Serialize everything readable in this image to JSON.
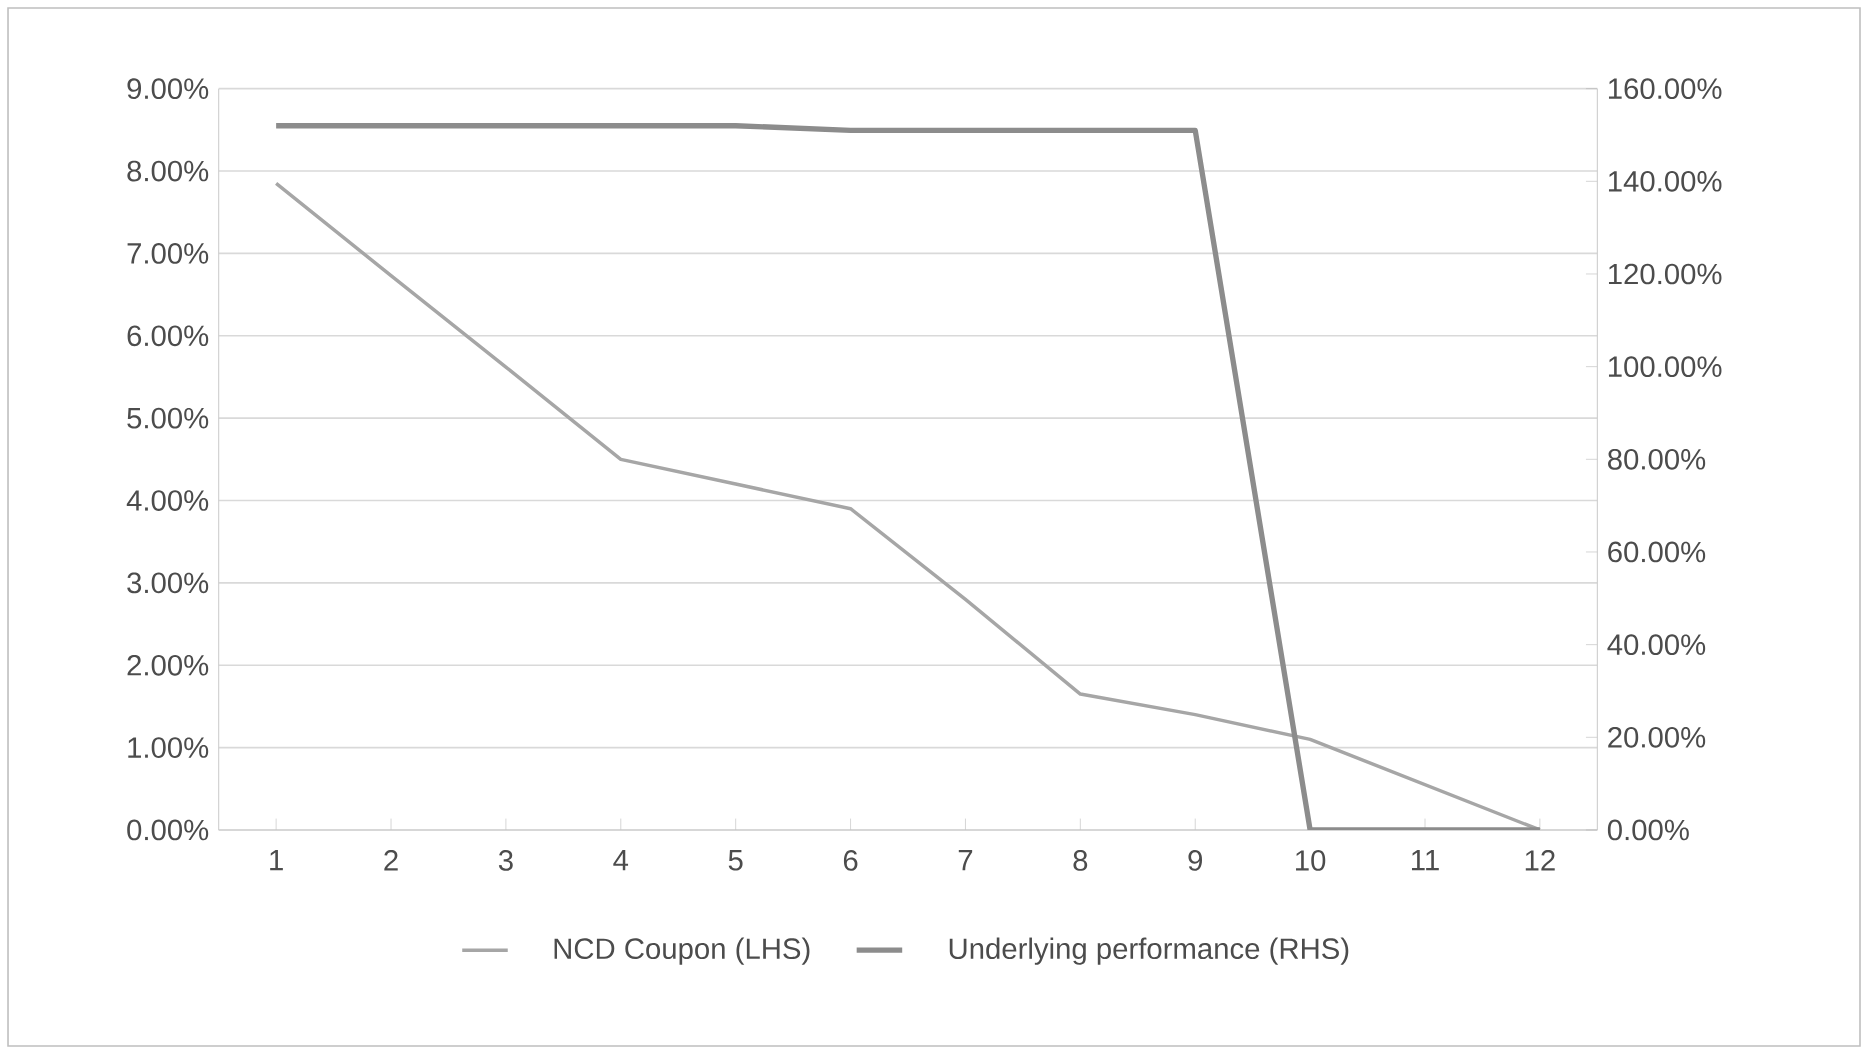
{
  "chart_data": {
    "type": "line",
    "categories": [
      "1",
      "2",
      "3",
      "4",
      "5",
      "6",
      "7",
      "8",
      "9",
      "10",
      "11",
      "12"
    ],
    "series": [
      {
        "name": "NCD Coupon (LHS)",
        "color": "#a6a6a6",
        "values": [
          7.85,
          6.73,
          5.62,
          4.5,
          4.2,
          3.9,
          2.8,
          1.65,
          1.4,
          1.1,
          0.55,
          0
        ]
      },
      {
        "name": "Underlying performance (RHS)",
        "color": "#8c8c8c",
        "axis": "y2",
        "values": [
          152,
          152,
          152,
          152,
          152,
          151,
          151,
          151,
          151,
          0,
          0,
          0
        ]
      }
    ],
    "ylim": [
      0,
      9
    ],
    "yticks": [
      {
        "value": 0,
        "label": "0.00%"
      },
      {
        "value": 1,
        "label": "1.00%"
      },
      {
        "value": 2,
        "label": "2.00%"
      },
      {
        "value": 3,
        "label": "3.00%"
      },
      {
        "value": 4,
        "label": "4.00%"
      },
      {
        "value": 5,
        "label": "5.00%"
      },
      {
        "value": 6,
        "label": "6.00%"
      },
      {
        "value": 7,
        "label": "7.00%"
      },
      {
        "value": 8,
        "label": "8.00%"
      },
      {
        "value": 9,
        "label": "9.00%"
      }
    ],
    "y2lim": [
      0,
      160
    ],
    "y2ticks": [
      {
        "value": 0,
        "label": "0.00%"
      },
      {
        "value": 20,
        "label": "20.00%"
      },
      {
        "value": 40,
        "label": "40.00%"
      },
      {
        "value": 60,
        "label": "60.00%"
      },
      {
        "value": 80,
        "label": "80.00%"
      },
      {
        "value": 100,
        "label": "100.00%"
      },
      {
        "value": 120,
        "label": "120.00%"
      },
      {
        "value": 140,
        "label": "140.00%"
      },
      {
        "value": 160,
        "label": "160.00%"
      }
    ],
    "grid": "y",
    "legend": "bottom"
  }
}
